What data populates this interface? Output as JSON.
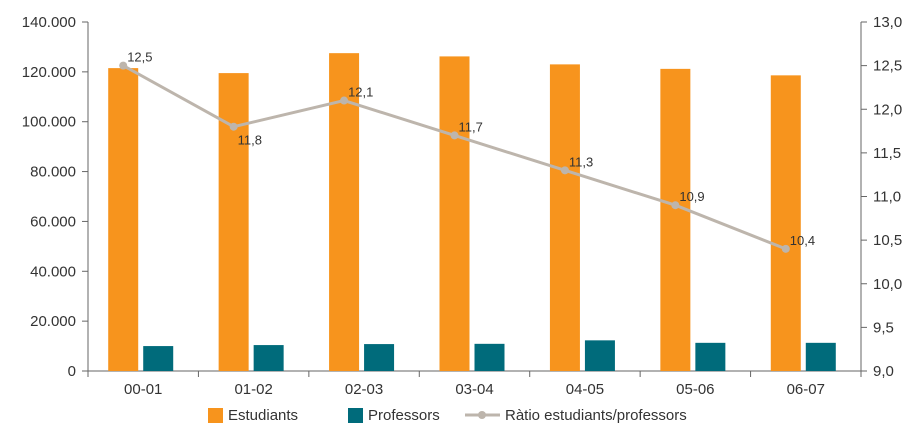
{
  "chart_data": {
    "type": "bar",
    "categories": [
      "00-01",
      "01-02",
      "02-03",
      "03-04",
      "04-05",
      "05-06",
      "06-07"
    ],
    "series": [
      {
        "name": "Estudiants",
        "type": "bar",
        "axis": "left",
        "values": [
          121500,
          119500,
          127500,
          126200,
          123000,
          121200,
          118600
        ]
      },
      {
        "name": "Professors",
        "type": "bar",
        "axis": "left",
        "values": [
          10000,
          10400,
          10800,
          10900,
          12300,
          11300,
          11300
        ]
      },
      {
        "name": "Ràtio estudiants/professors",
        "type": "line",
        "axis": "right",
        "values": [
          12.5,
          11.8,
          12.1,
          11.7,
          11.3,
          10.9,
          10.4
        ],
        "value_labels": [
          "12,5",
          "11,8",
          "12,1",
          "11,7",
          "11,3",
          "10,9",
          "10,4"
        ]
      }
    ],
    "title": "",
    "xlabel": "",
    "ylabel": "",
    "ylim": [
      0,
      140000
    ],
    "y2lim": [
      9.0,
      13.0
    ],
    "yticks": [
      "0",
      "20.000",
      "40.000",
      "60.000",
      "80.000",
      "100.000",
      "120.000",
      "140.000"
    ],
    "y2ticks": [
      "9,0",
      "9,5",
      "10,0",
      "10,5",
      "11,0",
      "11,5",
      "12,0",
      "12,5",
      "13,0"
    ],
    "grid": false,
    "legend_position": "bottom",
    "colors": {
      "Estudiants": "#F7941D",
      "Professors": "#006B7B",
      "Ràtio estudiants/professors": "#BDB5AC",
      "axis": "#666666"
    }
  }
}
